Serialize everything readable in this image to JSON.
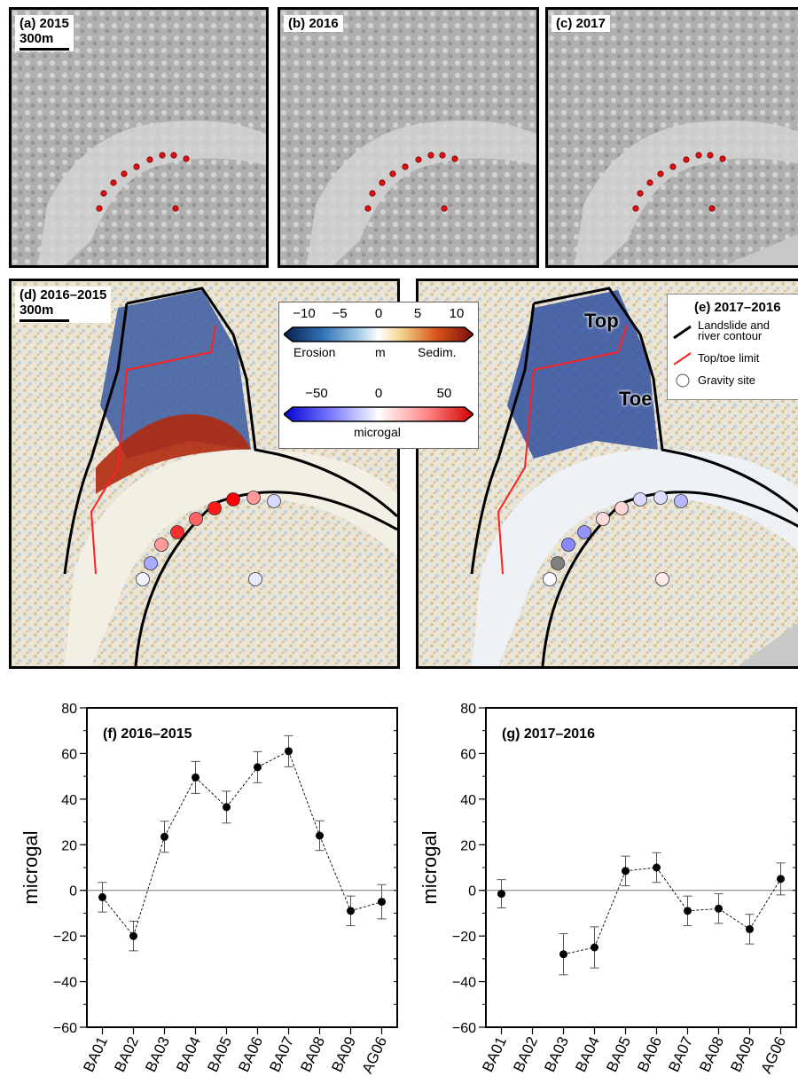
{
  "colors": {
    "erosion_dark": "#0a1f4a",
    "sediment_dark": "#7a0d0d",
    "contour": "#000000",
    "top_toe_limit": "#ff2020",
    "gravity_point": "#e01010",
    "gravity_outline": "#7a0000",
    "neg_microgal": "#1010ff",
    "pos_microgal": "#ff1010"
  },
  "panels": {
    "a": {
      "label": "(a) 2015",
      "scale": "300m"
    },
    "b": {
      "label": "(b) 2016"
    },
    "c": {
      "label": "(c) 2017"
    },
    "d": {
      "label": "(d) 2016–2015",
      "scale": "300m"
    },
    "e": {
      "label": "(e) 2017–2016",
      "top_label": "Top",
      "toe_label": "Toe",
      "legend": {
        "contour_line1": "Landslide and",
        "contour_line2": "river contour",
        "limit": "Top/toe limit",
        "site": "Gravity site"
      }
    }
  },
  "colorbar_elevation": {
    "ticks": [
      "−10",
      "−5",
      "0",
      "5",
      "10"
    ],
    "left_word": "Erosion",
    "mid_word": "m",
    "right_word": "Sedim."
  },
  "colorbar_gravity": {
    "ticks": [
      "−50",
      "0",
      "50"
    ],
    "unit": "microgal"
  },
  "chart_data": [
    {
      "type": "scatter",
      "title": "(f) 2016–2015",
      "ylabel": "microgal",
      "ylim": [
        -60,
        80
      ],
      "yticks": [
        80,
        60,
        40,
        20,
        0,
        -20,
        -40,
        -60
      ],
      "ytick_labels": [
        "80",
        "60",
        "40",
        "20",
        "0",
        "−20",
        "−40",
        "−60"
      ],
      "categories": [
        "BA01",
        "BA02",
        "BA03",
        "BA04",
        "BA05",
        "BA06",
        "BA07",
        "BA08",
        "BA09",
        "AG06"
      ],
      "values": [
        -3,
        -20,
        23.5,
        49.5,
        36.5,
        54,
        61,
        24,
        -9,
        -5
      ],
      "errors": [
        6.5,
        6.5,
        6.8,
        7,
        7,
        6.8,
        6.8,
        6.5,
        6.5,
        7.5
      ],
      "connected_dashed": true,
      "zero_line": true
    },
    {
      "type": "scatter",
      "title": "(g) 2017–2016",
      "ylabel": "microgal",
      "ylim": [
        -60,
        80
      ],
      "yticks": [
        80,
        60,
        40,
        20,
        0,
        -20,
        -40,
        -60
      ],
      "ytick_labels": [
        "80",
        "60",
        "40",
        "20",
        "0",
        "−20",
        "−40",
        "−60"
      ],
      "categories": [
        "BA01",
        "BA02",
        "BA03",
        "BA04",
        "BA05",
        "BA06",
        "BA07",
        "BA08",
        "BA09",
        "AG06"
      ],
      "values": [
        -1.5,
        null,
        -28,
        -25,
        8.5,
        10,
        -9,
        -8,
        -17,
        5
      ],
      "errors": [
        6.2,
        null,
        9,
        9,
        6.5,
        6.5,
        6.5,
        6.5,
        6.5,
        7
      ],
      "connected_dashed": true,
      "zero_line": true
    }
  ]
}
